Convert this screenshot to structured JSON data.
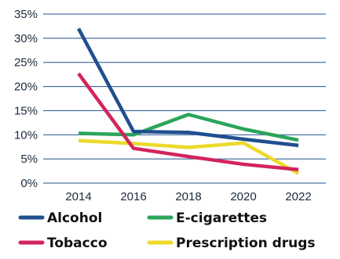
{
  "chart_data": {
    "type": "line",
    "title": "",
    "xlabel": "",
    "ylabel": "",
    "x": [
      2014,
      2016,
      2018,
      2020,
      2022
    ],
    "x_tick_labels": [
      "2014",
      "2016",
      "2018",
      "2020",
      "2022"
    ],
    "ylim": [
      0,
      35
    ],
    "y_ticks": [
      0,
      5,
      10,
      15,
      20,
      25,
      30,
      35
    ],
    "y_tick_labels": [
      "0%",
      "5%",
      "10%",
      "15%",
      "20%",
      "25%",
      "30%",
      "35%"
    ],
    "grid": "horizontal",
    "legend_position": "bottom",
    "series": [
      {
        "name": "Alcohol",
        "color": "#1f4f8f",
        "values": [
          32,
          10.7,
          10.5,
          9.1,
          7.8
        ]
      },
      {
        "name": "E-cigarettes",
        "color": "#2aa55a",
        "values": [
          10.3,
          10.0,
          14.2,
          11.2,
          8.9
        ]
      },
      {
        "name": "Tobacco",
        "color": "#d3245c",
        "values": [
          22.7,
          7.2,
          5.5,
          3.9,
          2.8
        ]
      },
      {
        "name": "Prescription drugs",
        "color": "#ecd92a",
        "values": [
          8.8,
          8.2,
          7.4,
          8.3,
          2.0
        ]
      }
    ]
  }
}
